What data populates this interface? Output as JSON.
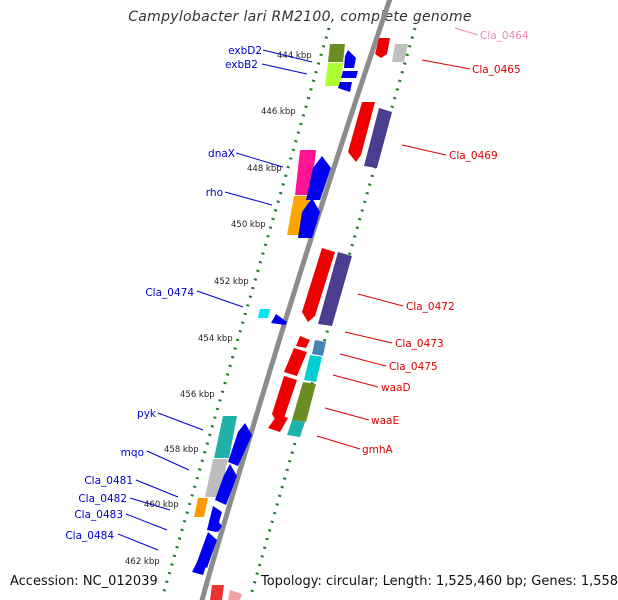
{
  "title": "Campylobacter lari RM2100, complete genome",
  "footer": {
    "accession": "Accession: NC_012039",
    "summary": "Topology: circular; Length: 1,525,460 bp; Genes: 1,558"
  },
  "colors": {
    "backbone": "#8a8a8a",
    "tick": "#1f7a1f",
    "left_label": "#0000cc",
    "right_label": "#dd0000",
    "faded_label": "#ee88bb"
  },
  "scale_labels": [
    "444 kbp",
    "446 kbp",
    "448 kbp",
    "450 kbp",
    "452 kbp",
    "454 kbp",
    "456 kbp",
    "458 kbp",
    "460 kbp",
    "462 kbp"
  ],
  "left_labels": [
    "exbD2",
    "exbB2",
    "dnaX",
    "rho",
    "Cla_0474",
    "pyk",
    "mqo",
    "Cla_0481",
    "Cla_0482",
    "Cla_0483",
    "Cla_0484"
  ],
  "right_labels": [
    "Cla_0464",
    "Cla_0465",
    "Cla_0469",
    "Cla_0472",
    "Cla_0473",
    "Cla_0475",
    "waaD",
    "waaE",
    "gmhA"
  ]
}
